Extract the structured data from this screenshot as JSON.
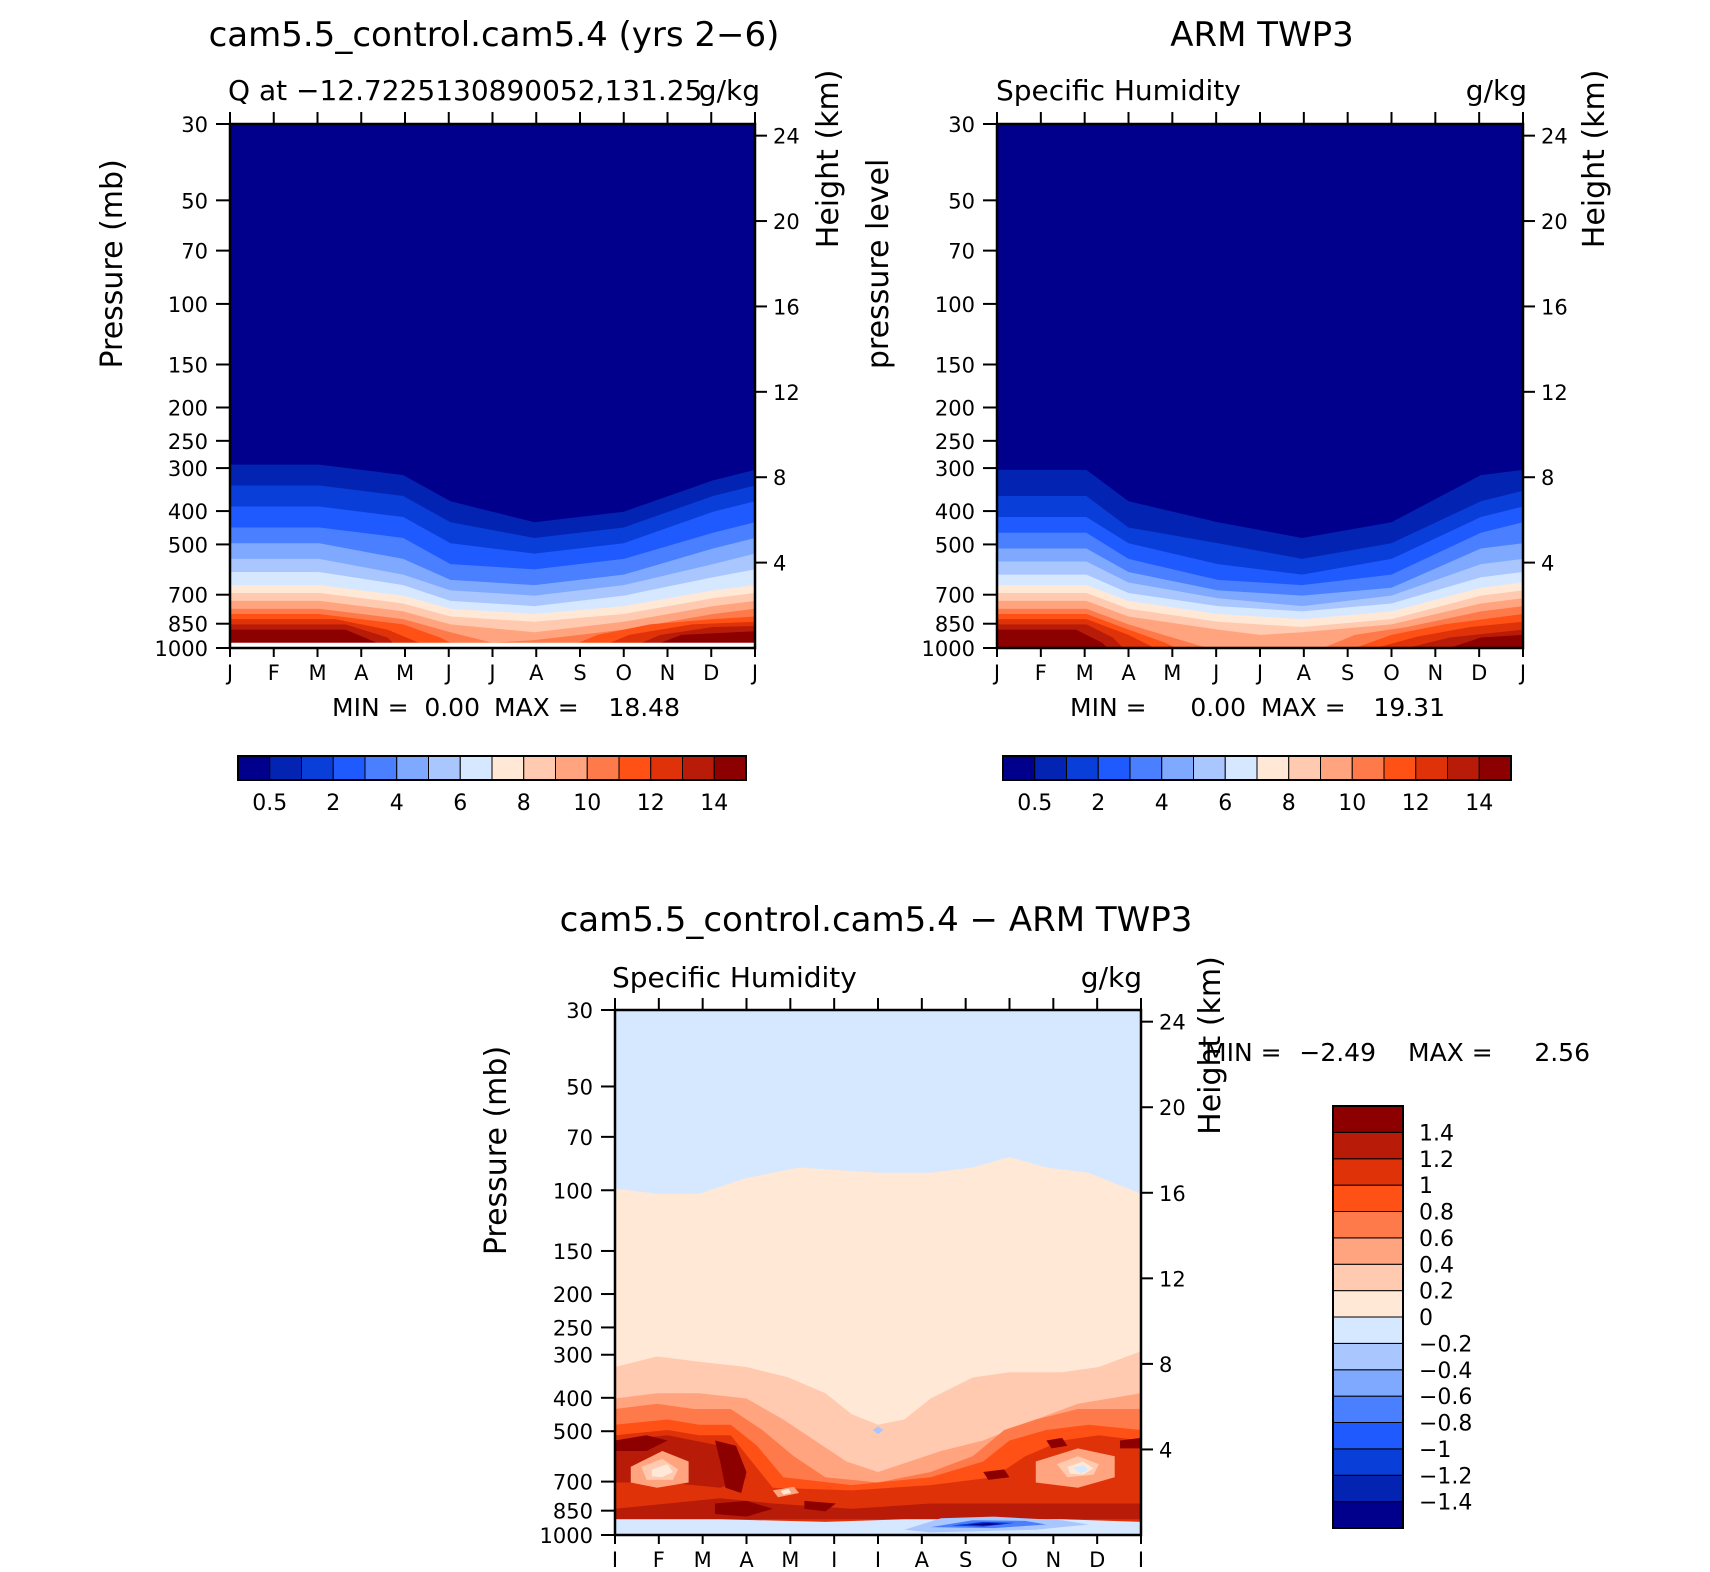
{
  "colors": {
    "levels": [
      "#00008c",
      "#0324b3",
      "#0a3ed8",
      "#1f5aff",
      "#4a80ff",
      "#7fa8ff",
      "#aac6ff",
      "#d6e8ff",
      "#ffe8d6",
      "#ffcaaf",
      "#ffa47f",
      "#ff7a4a",
      "#ff5016",
      "#e03208",
      "#b81c08",
      "#8c0000"
    ],
    "background": "#ffffff"
  },
  "chart_data": [
    {
      "type": "contour",
      "title": "cam5.5_control.cam5.4 (yrs 2−6)",
      "subtitle_left": "Q at −12.7225130890052,131.25",
      "subtitle_right": "g/kg",
      "ylabel": "Pressure (mb)",
      "ylabel_right": "Height (km)",
      "x_ticks": [
        "J",
        "F",
        "M",
        "A",
        "M",
        "J",
        "J",
        "A",
        "S",
        "O",
        "N",
        "D",
        "J"
      ],
      "y_ticks": [
        "30",
        "50",
        "70",
        "100",
        "150",
        "200",
        "250",
        "300",
        "400",
        "500",
        "700",
        "850",
        "1000"
      ],
      "y_ticks_right": [
        "24",
        "20",
        "16",
        "12",
        "8",
        "4"
      ],
      "stats": {
        "min_label": "MIN =",
        "min": "0.00",
        "max_label": "MAX =",
        "max": "18.48"
      },
      "colorbar_labels": [
        "0.5",
        "2",
        "4",
        "6",
        "8",
        "10",
        "12",
        "14"
      ]
    },
    {
      "type": "contour",
      "title": "ARM TWP3",
      "subtitle_left": "Specific Humidity",
      "subtitle_right": "g/kg",
      "ylabel": "pressure level",
      "ylabel_right": "Height (km)",
      "x_ticks": [
        "J",
        "F",
        "M",
        "A",
        "M",
        "J",
        "J",
        "A",
        "S",
        "O",
        "N",
        "D",
        "J"
      ],
      "y_ticks": [
        "30",
        "50",
        "70",
        "100",
        "150",
        "200",
        "250",
        "300",
        "400",
        "500",
        "700",
        "850",
        "1000"
      ],
      "y_ticks_right": [
        "24",
        "20",
        "16",
        "12",
        "8",
        "4"
      ],
      "stats": {
        "min_label": "MIN =",
        "min": "0.00",
        "max_label": "MAX =",
        "max": "19.31"
      },
      "colorbar_labels": [
        "0.5",
        "2",
        "4",
        "6",
        "8",
        "10",
        "12",
        "14"
      ]
    },
    {
      "type": "contour",
      "title": "cam5.5_control.cam5.4 − ARM TWP3",
      "subtitle_left": "Specific Humidity",
      "subtitle_right": "g/kg",
      "ylabel": "Pressure (mb)",
      "ylabel_right": "Height (km)",
      "x_ticks": [
        "J",
        "F",
        "M",
        "A",
        "M",
        "J",
        "J",
        "A",
        "S",
        "O",
        "N",
        "D",
        "J"
      ],
      "y_ticks": [
        "30",
        "50",
        "70",
        "100",
        "150",
        "200",
        "250",
        "300",
        "400",
        "500",
        "700",
        "850",
        "1000"
      ],
      "y_ticks_right": [
        "24",
        "20",
        "16",
        "12",
        "8",
        "4"
      ],
      "stats": {
        "min_label": "MIN =",
        "min": "−2.49",
        "max_label": "MAX =",
        "max": "2.56"
      },
      "colorbar_labels": [
        "1.4",
        "1.2",
        "1",
        "0.8",
        "0.6",
        "0.4",
        "0.2",
        "0",
        "−0.2",
        "−0.4",
        "−0.6",
        "−0.8",
        "−1",
        "−1.2",
        "−1.4"
      ]
    }
  ]
}
